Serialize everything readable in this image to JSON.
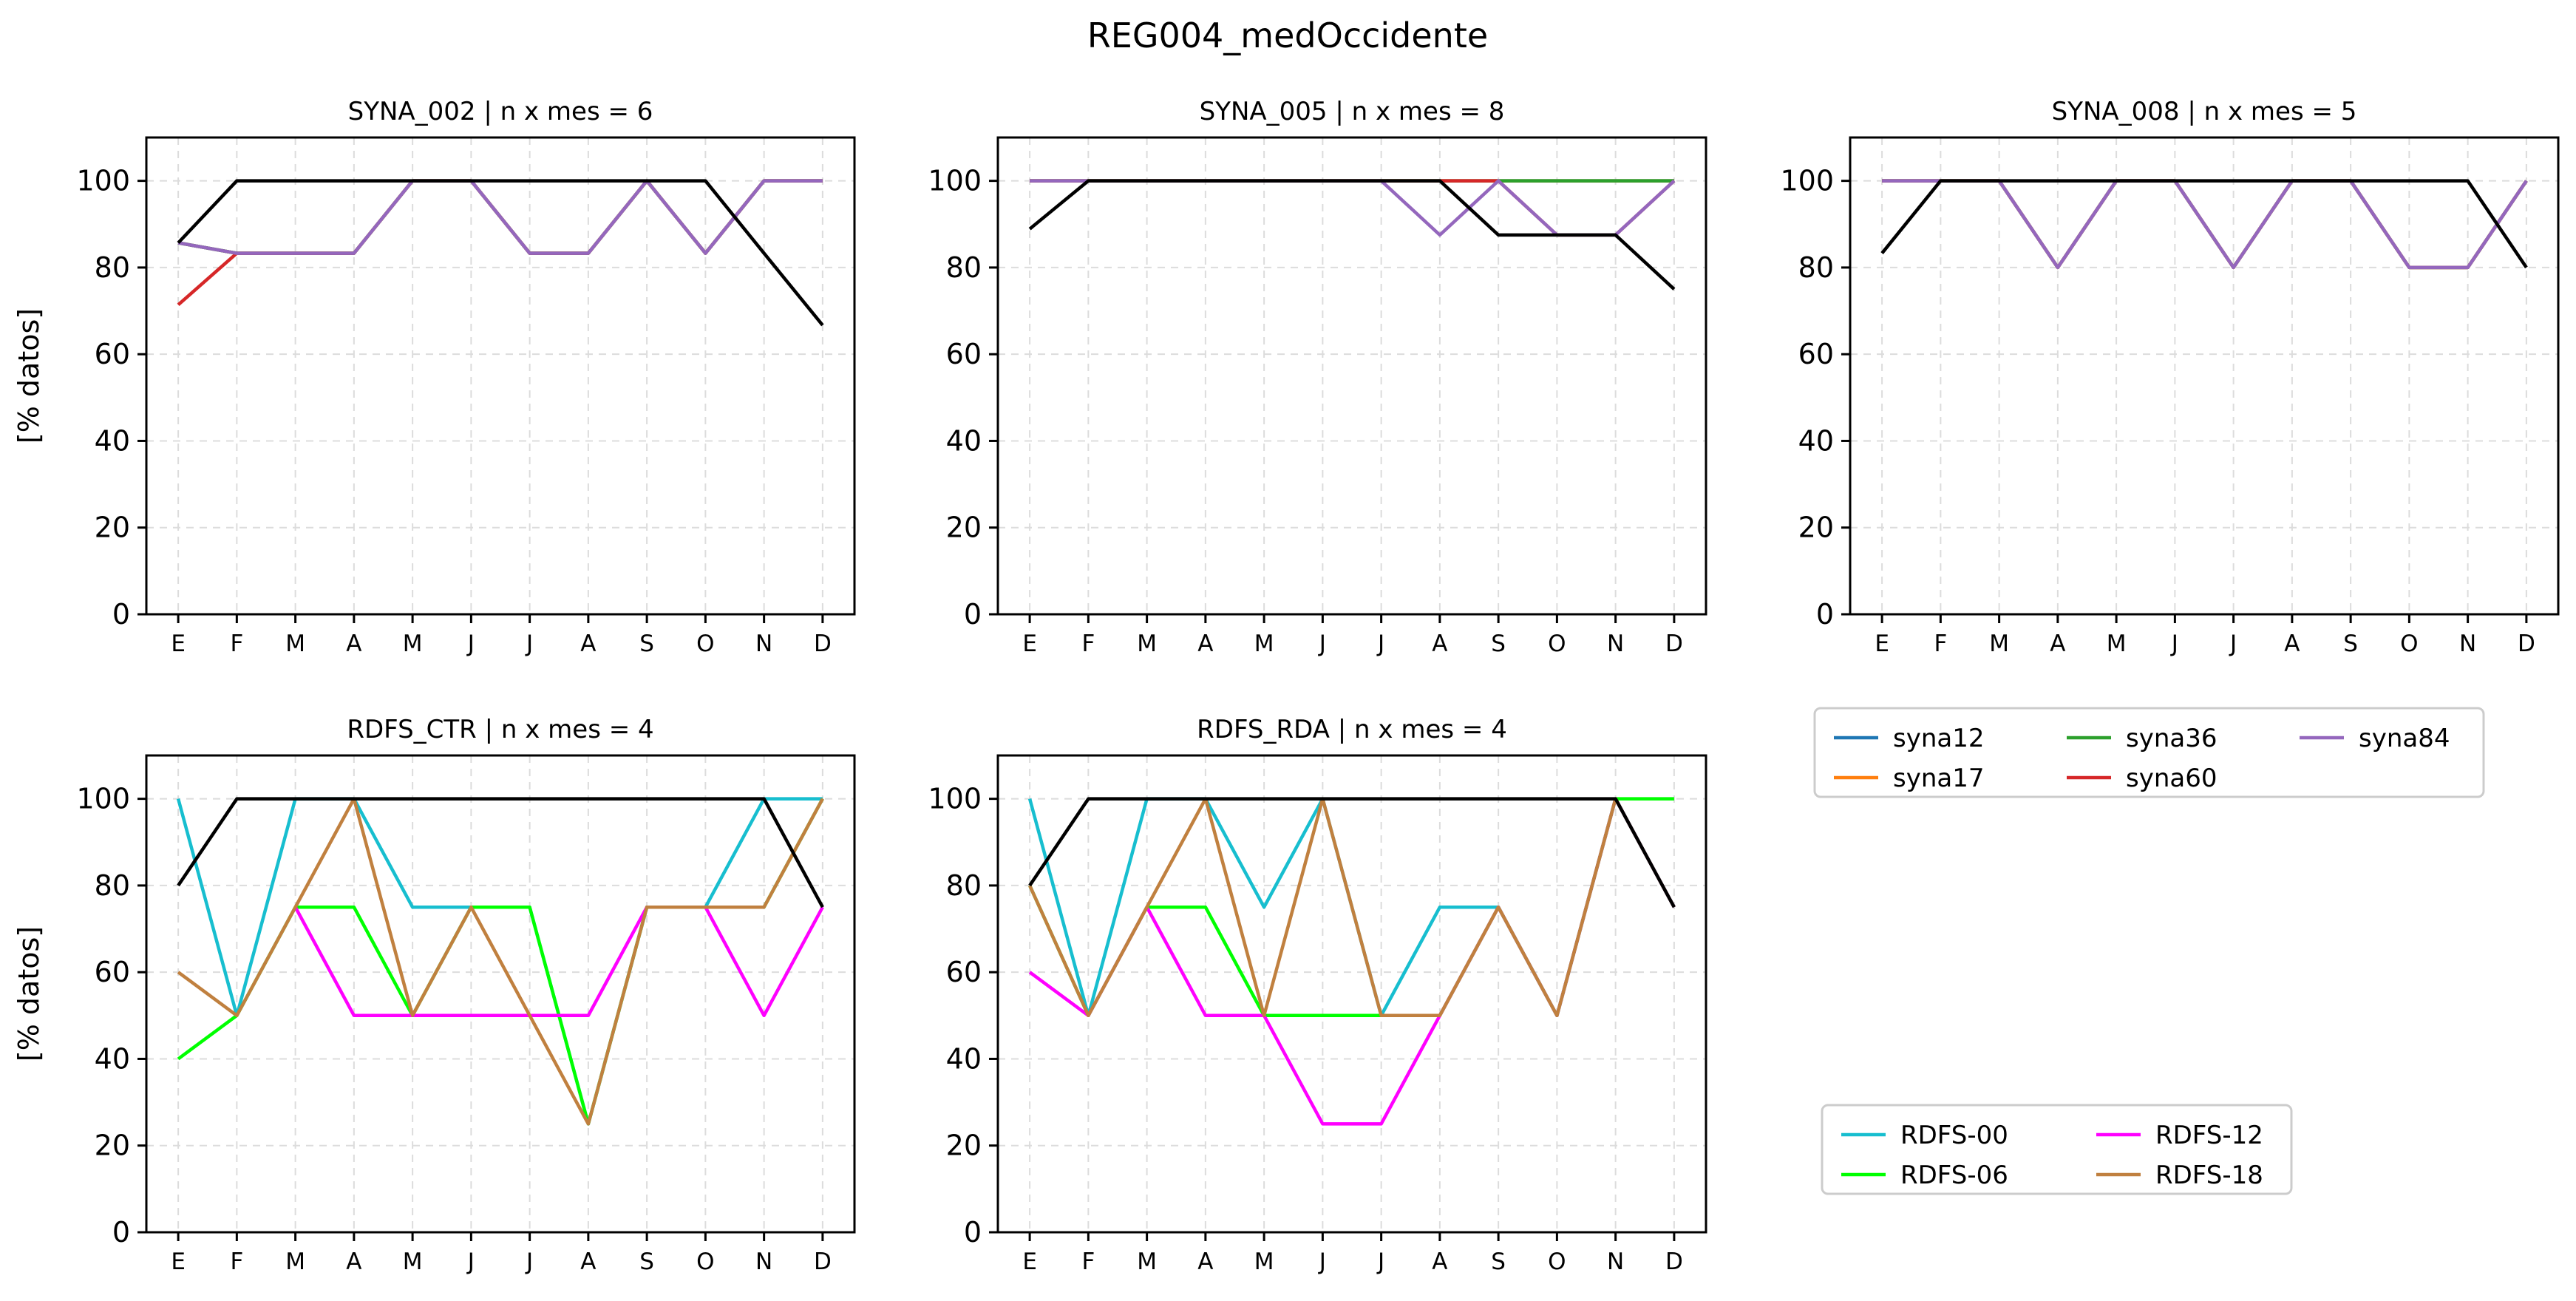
{
  "figure_title": "REG004_medOccidente",
  "month_labels": [
    "E",
    "F",
    "M",
    "A",
    "M",
    "J",
    "J",
    "A",
    "S",
    "O",
    "N",
    "D"
  ],
  "legend_synop": {
    "entries": [
      {
        "name": "syna12",
        "color": "#1f77b4"
      },
      {
        "name": "syna17",
        "color": "#ff7f0e"
      },
      {
        "name": "syna36",
        "color": "#2ca02c"
      },
      {
        "name": "syna60",
        "color": "#d62728"
      },
      {
        "name": "syna84",
        "color": "#9467bd"
      }
    ]
  },
  "legend_rdfs": {
    "entries": [
      {
        "name": "RDFS-00",
        "color": "#17becf"
      },
      {
        "name": "RDFS-06",
        "color": "#00ff00"
      },
      {
        "name": "RDFS-12",
        "color": "#ff00ff"
      },
      {
        "name": "RDFS-18",
        "color": "#c0803f"
      }
    ]
  },
  "chart_data": [
    {
      "type": "line",
      "title": "SYNA_002 | n x mes =  6",
      "ylabel": "[% datos]",
      "categories": [
        "E",
        "F",
        "M",
        "A",
        "M",
        "J",
        "J",
        "A",
        "S",
        "O",
        "N",
        "D"
      ],
      "ylim": [
        0,
        110
      ],
      "yticks": [
        0,
        20,
        40,
        60,
        80,
        100
      ],
      "grid": true,
      "series": [
        {
          "name": "syna12",
          "color": "#1f77b4",
          "values": [
            85.7,
            83.3,
            83.3,
            83.3,
            100,
            100,
            83.3,
            83.3,
            100,
            83.3,
            100,
            100
          ]
        },
        {
          "name": "syna17",
          "color": "#ff7f0e",
          "values": [
            85.7,
            83.3,
            83.3,
            83.3,
            100,
            100,
            83.3,
            83.3,
            100,
            83.3,
            100,
            100
          ]
        },
        {
          "name": "syna36",
          "color": "#2ca02c",
          "values": [
            85.7,
            83.3,
            83.3,
            83.3,
            100,
            100,
            83.3,
            83.3,
            100,
            83.3,
            100,
            100
          ]
        },
        {
          "name": "syna60",
          "color": "#d62728",
          "values": [
            71.4,
            83.3,
            83.3,
            83.3,
            100,
            100,
            83.3,
            83.3,
            100,
            83.3,
            100,
            100
          ]
        },
        {
          "name": "syna84",
          "color": "#9467bd",
          "values": [
            85.7,
            83.3,
            83.3,
            83.3,
            100,
            100,
            83.3,
            83.3,
            100,
            83.3,
            100,
            100
          ]
        },
        {
          "color": "#000000",
          "values": [
            85.7,
            100,
            100,
            100,
            100,
            100,
            100,
            100,
            100,
            100,
            83.3,
            66.7
          ]
        }
      ]
    },
    {
      "type": "line",
      "title": "SYNA_005 | n x mes =  8",
      "ylabel": "",
      "categories": [
        "E",
        "F",
        "M",
        "A",
        "M",
        "J",
        "J",
        "A",
        "S",
        "O",
        "N",
        "D"
      ],
      "ylim": [
        0,
        110
      ],
      "yticks": [
        0,
        20,
        40,
        60,
        80,
        100
      ],
      "grid": true,
      "series": [
        {
          "name": "syna12",
          "color": "#1f77b4",
          "values": [
            100,
            100,
            100,
            100,
            100,
            100,
            100,
            100,
            100,
            100,
            100,
            100
          ]
        },
        {
          "name": "syna17",
          "color": "#ff7f0e",
          "values": [
            100,
            100,
            100,
            100,
            100,
            100,
            100,
            100,
            100,
            100,
            100,
            100
          ]
        },
        {
          "name": "syna36",
          "color": "#2ca02c",
          "values": [
            100,
            100,
            100,
            100,
            100,
            100,
            100,
            100,
            100,
            100,
            100,
            100
          ]
        },
        {
          "name": "syna60",
          "color": "#d62728",
          "values": [
            100,
            100,
            100,
            100,
            100,
            100,
            100,
            100,
            100,
            87.5,
            87.5,
            100
          ]
        },
        {
          "name": "syna84",
          "color": "#9467bd",
          "values": [
            100,
            100,
            100,
            100,
            100,
            100,
            100,
            87.5,
            100,
            87.5,
            87.5,
            100
          ]
        },
        {
          "color": "#000000",
          "values": [
            88.9,
            100,
            100,
            100,
            100,
            100,
            100,
            100,
            87.5,
            87.5,
            87.5,
            75
          ]
        }
      ]
    },
    {
      "type": "line",
      "title": "SYNA_008 | n x mes =  5",
      "ylabel": "",
      "categories": [
        "E",
        "F",
        "M",
        "A",
        "M",
        "J",
        "J",
        "A",
        "S",
        "O",
        "N",
        "D"
      ],
      "ylim": [
        0,
        110
      ],
      "yticks": [
        0,
        20,
        40,
        60,
        80,
        100
      ],
      "grid": true,
      "series": [
        {
          "name": "syna12",
          "color": "#1f77b4",
          "values": [
            100,
            100,
            100,
            80,
            100,
            100,
            80,
            100,
            100,
            80,
            80,
            100
          ]
        },
        {
          "name": "syna17",
          "color": "#ff7f0e",
          "values": [
            100,
            100,
            100,
            80,
            100,
            100,
            80,
            100,
            100,
            80,
            80,
            100
          ]
        },
        {
          "name": "syna36",
          "color": "#2ca02c",
          "values": [
            100,
            100,
            100,
            80,
            100,
            100,
            80,
            100,
            100,
            80,
            80,
            100
          ]
        },
        {
          "name": "syna60",
          "color": "#d62728",
          "values": [
            100,
            100,
            100,
            80,
            100,
            100,
            80,
            100,
            100,
            80,
            80,
            100
          ]
        },
        {
          "name": "syna84",
          "color": "#9467bd",
          "values": [
            100,
            100,
            100,
            80,
            100,
            100,
            80,
            100,
            100,
            80,
            80,
            100
          ]
        },
        {
          "color": "#000000",
          "values": [
            83.3,
            100,
            100,
            100,
            100,
            100,
            100,
            100,
            100,
            100,
            100,
            80
          ]
        }
      ]
    },
    {
      "type": "line",
      "title": "RDFS_CTR | n x mes =  4",
      "ylabel": "[% datos]",
      "categories": [
        "E",
        "F",
        "M",
        "A",
        "M",
        "J",
        "J",
        "A",
        "S",
        "O",
        "N",
        "D"
      ],
      "ylim": [
        0,
        110
      ],
      "yticks": [
        0,
        20,
        40,
        60,
        80,
        100
      ],
      "grid": true,
      "series": [
        {
          "name": "RDFS-00",
          "color": "#17becf",
          "values": [
            100,
            50,
            100,
            100,
            75,
            75,
            75,
            25,
            75,
            75,
            100,
            100
          ]
        },
        {
          "name": "RDFS-06",
          "color": "#00ff00",
          "values": [
            40,
            50,
            75,
            75,
            50,
            75,
            75,
            25,
            75,
            75,
            75,
            100
          ]
        },
        {
          "name": "RDFS-12",
          "color": "#ff00ff",
          "values": [
            null,
            null,
            75,
            50,
            50,
            50,
            50,
            50,
            75,
            75,
            50,
            75
          ]
        },
        {
          "name": "RDFS-18",
          "color": "#c0803f",
          "values": [
            60,
            50,
            75,
            100,
            50,
            75,
            50,
            25,
            75,
            75,
            75,
            100
          ]
        },
        {
          "color": "#000000",
          "values": [
            80,
            100,
            100,
            100,
            100,
            100,
            100,
            100,
            100,
            100,
            100,
            75
          ]
        }
      ]
    },
    {
      "type": "line",
      "title": "RDFS_RDA | n x mes =  4",
      "ylabel": "",
      "categories": [
        "E",
        "F",
        "M",
        "A",
        "M",
        "J",
        "J",
        "A",
        "S",
        "O",
        "N",
        "D"
      ],
      "ylim": [
        0,
        110
      ],
      "yticks": [
        0,
        20,
        40,
        60,
        80,
        100
      ],
      "grid": true,
      "series": [
        {
          "name": "RDFS-00",
          "color": "#17becf",
          "values": [
            100,
            50,
            100,
            100,
            75,
            100,
            50,
            75,
            75,
            50,
            100,
            75
          ]
        },
        {
          "name": "RDFS-06",
          "color": "#00ff00",
          "values": [
            80,
            50,
            75,
            75,
            50,
            50,
            50,
            50,
            75,
            50,
            100,
            100
          ]
        },
        {
          "name": "RDFS-12",
          "color": "#ff00ff",
          "values": [
            60,
            50,
            75,
            50,
            50,
            25,
            25,
            50,
            75,
            50,
            100,
            75
          ]
        },
        {
          "name": "RDFS-18",
          "color": "#c0803f",
          "values": [
            80,
            50,
            75,
            100,
            50,
            100,
            50,
            50,
            75,
            50,
            100,
            75
          ]
        },
        {
          "color": "#000000",
          "values": [
            80,
            100,
            100,
            100,
            100,
            100,
            100,
            100,
            100,
            100,
            100,
            75
          ]
        }
      ]
    }
  ]
}
